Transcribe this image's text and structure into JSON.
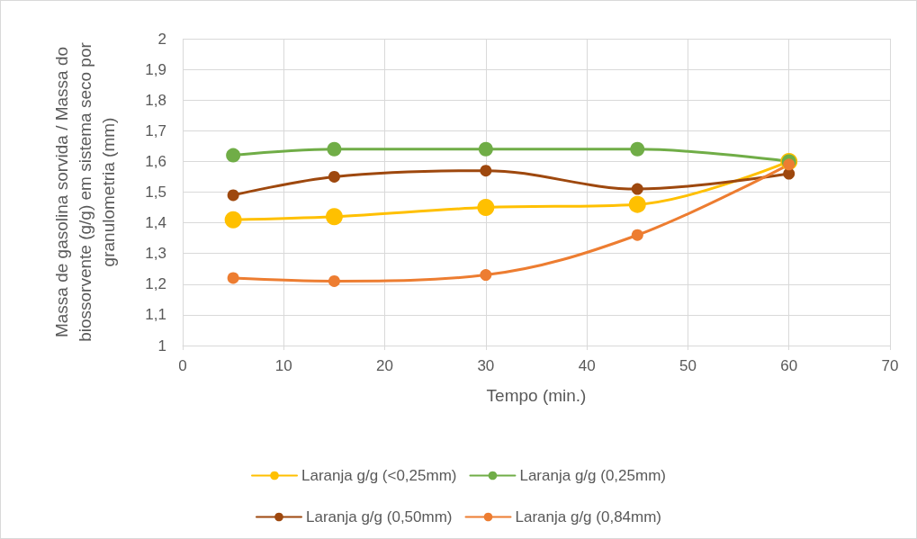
{
  "chart_data": {
    "type": "line",
    "xlabel": "Tempo (min.)",
    "ylabel": "Massa de gasolina sorvida / Massa do biossorvente (g/g) em sistema seco por granulometria (mm)",
    "x": [
      5,
      15,
      30,
      45,
      60
    ],
    "series": [
      {
        "name": "Laranja g/g (<0,25mm)",
        "color": "#ffc000",
        "values": [
          1.41,
          1.42,
          1.45,
          1.46,
          1.6
        ]
      },
      {
        "name": "Laranja g/g (0,25mm)",
        "color": "#70ad47",
        "values": [
          1.62,
          1.64,
          1.64,
          1.64,
          1.6
        ]
      },
      {
        "name": "Laranja g/g (0,50mm)",
        "color": "#9e480e",
        "values": [
          1.49,
          1.55,
          1.57,
          1.51,
          1.56
        ]
      },
      {
        "name": "Laranja g/g (0,84mm)",
        "color": "#ed7d31",
        "values": [
          1.22,
          1.21,
          1.23,
          1.36,
          1.59
        ]
      }
    ],
    "xlim": [
      0,
      70
    ],
    "xticks": [
      0,
      10,
      20,
      30,
      40,
      50,
      60,
      70
    ],
    "ylim": [
      1,
      2
    ],
    "yticks": [
      1,
      {
        "value": 1.1,
        "label": "1,1"
      },
      {
        "value": 1.2,
        "label": "1,2"
      },
      {
        "value": 1.3,
        "label": "1,3"
      },
      {
        "value": 1.4,
        "label": "1,4"
      },
      {
        "value": 1.5,
        "label": "1,5"
      },
      {
        "value": 1.6,
        "label": "1,6"
      },
      {
        "value": 1.7,
        "label": "1,7"
      },
      {
        "value": 1.8,
        "label": "1,8"
      },
      {
        "value": 1.9,
        "label": "1,9"
      },
      2
    ],
    "grid": true,
    "legend": "bottom",
    "marker": "circle",
    "line_style": "solid"
  }
}
